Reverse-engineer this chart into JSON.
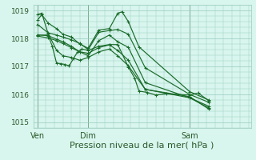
{
  "bg_color": "#d8f5ee",
  "grid_color": "#99ccbb",
  "line_color": "#1a6b2a",
  "xlabel": "Pression niveau de la mer( hPa )",
  "xlabel_fontsize": 8,
  "ylim": [
    1014.8,
    1019.2
  ],
  "yticks": [
    1015,
    1016,
    1017,
    1018,
    1019
  ],
  "xtick_labels": [
    "Ven",
    "Dim",
    "Sam"
  ],
  "xtick_positions": [
    8,
    56,
    152
  ],
  "vline_positions": [
    8,
    56,
    152
  ],
  "xmin": 4,
  "xmax": 210,
  "lines": [
    [
      8,
      1018.65,
      12,
      1018.85,
      18,
      1018.55,
      26,
      1018.35,
      32,
      1018.15,
      40,
      1018.05,
      48,
      1017.8,
      56,
      1017.65,
      66,
      1018.3,
      76,
      1018.35,
      84,
      1018.9,
      88,
      1018.95,
      94,
      1018.6,
      104,
      1017.7,
      152,
      1016.1,
      170,
      1015.8
    ],
    [
      8,
      1018.5,
      18,
      1018.2,
      26,
      1018.12,
      32,
      1018.05,
      40,
      1017.95,
      48,
      1017.82,
      56,
      1017.6,
      66,
      1018.22,
      76,
      1018.28,
      84,
      1018.32,
      94,
      1018.15,
      110,
      1016.95,
      152,
      1016.0,
      170,
      1015.72
    ],
    [
      8,
      1018.12,
      18,
      1018.1,
      26,
      1017.97,
      32,
      1017.88,
      40,
      1017.72,
      48,
      1017.52,
      56,
      1017.38,
      66,
      1017.92,
      76,
      1018.12,
      84,
      1017.88,
      94,
      1017.68,
      110,
      1016.42,
      152,
      1015.88,
      170,
      1015.58
    ],
    [
      8,
      1018.08,
      18,
      1018.02,
      26,
      1017.92,
      32,
      1017.82,
      40,
      1017.67,
      48,
      1017.52,
      56,
      1017.47,
      66,
      1017.67,
      76,
      1017.77,
      84,
      1017.57,
      94,
      1017.22,
      110,
      1016.18,
      152,
      1015.88,
      170,
      1015.52
    ],
    [
      8,
      1018.85,
      12,
      1018.9,
      18,
      1018.18,
      26,
      1017.58,
      32,
      1017.38,
      40,
      1017.32,
      48,
      1017.22,
      56,
      1017.32,
      66,
      1017.52,
      76,
      1017.62,
      84,
      1017.38,
      94,
      1017.02,
      110,
      1016.18,
      152,
      1015.92,
      170,
      1015.48
    ],
    [
      8,
      1018.12,
      18,
      1018.12,
      22,
      1017.72,
      26,
      1017.12,
      30,
      1017.1,
      34,
      1017.07,
      38,
      1017.02,
      42,
      1017.28,
      46,
      1017.52,
      50,
      1017.62,
      56,
      1017.57,
      66,
      1017.72,
      76,
      1017.78,
      84,
      1017.78,
      94,
      1016.98,
      100,
      1016.58,
      104,
      1016.12,
      112,
      1016.07,
      120,
      1015.98,
      130,
      1016.02,
      152,
      1015.98,
      160,
      1016.05,
      170,
      1015.78
    ]
  ]
}
